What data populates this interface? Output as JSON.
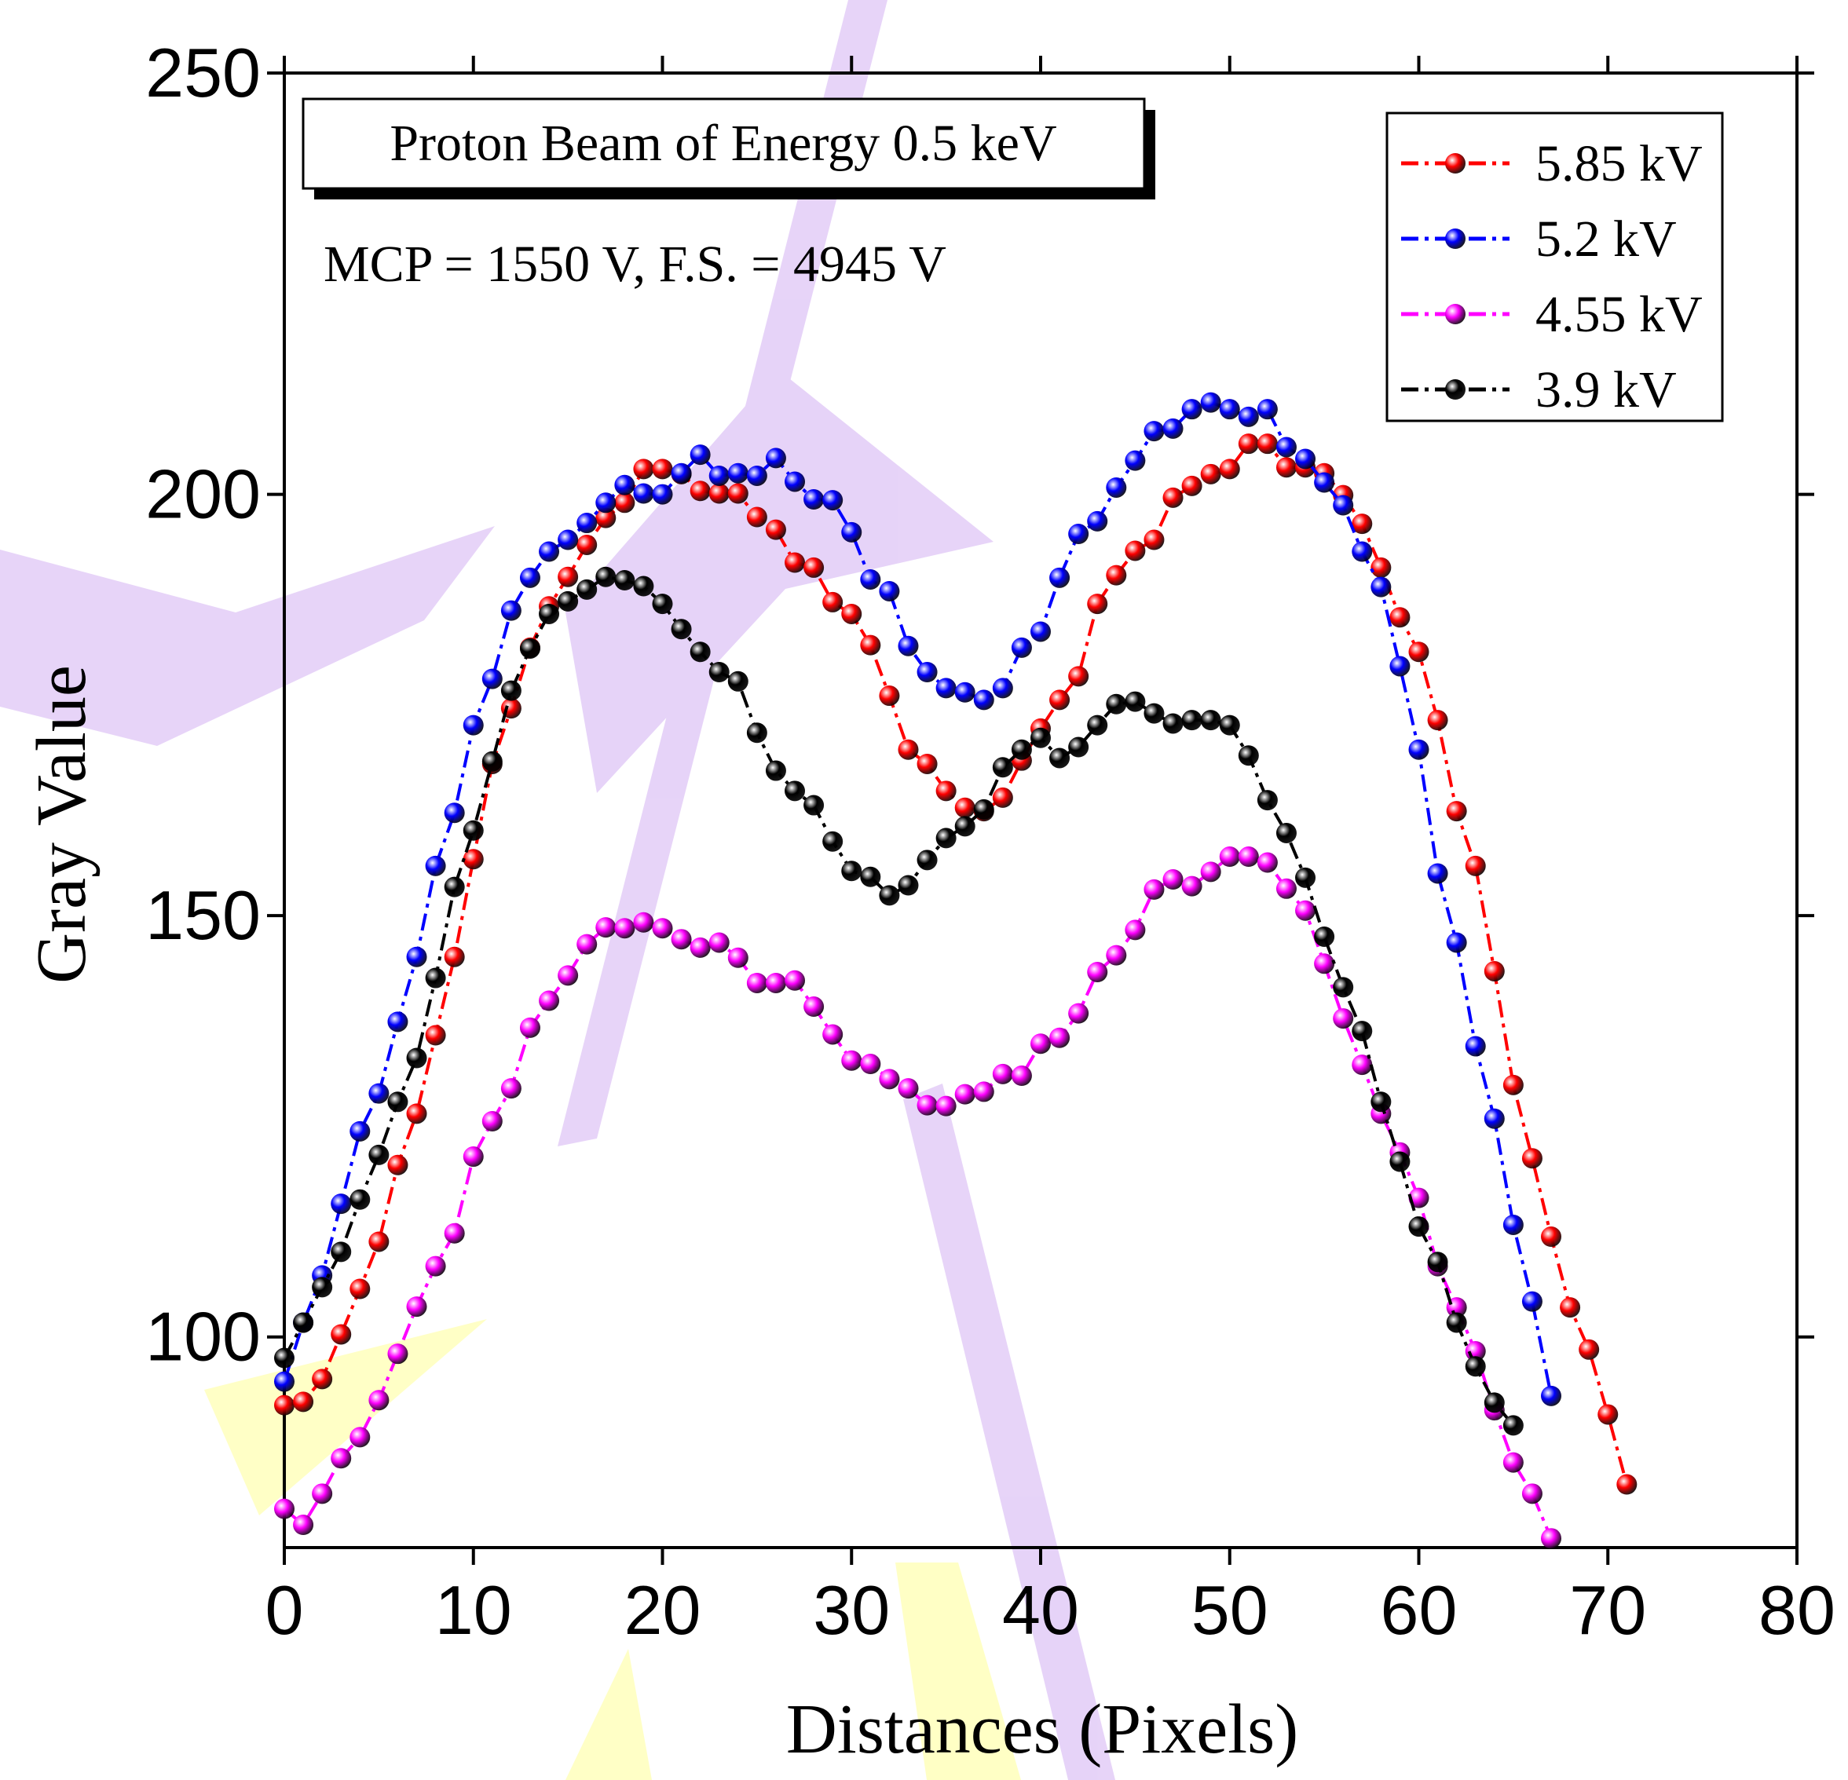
{
  "chart_data": {
    "type": "line",
    "xlabel": "Distances (Pixels)",
    "ylabel": "Gray Value",
    "annotations": [
      "Proton Beam of Energy 0.5 keV",
      "MCP = 1550 V, F.S. = 4945 V"
    ],
    "xlim": [
      0,
      80
    ],
    "xticks": [
      0,
      10,
      20,
      30,
      40,
      50,
      60,
      70,
      80
    ],
    "ylim": [
      75,
      250
    ],
    "yticks": [
      100,
      150,
      200,
      250
    ],
    "legend": "upper right",
    "series": [
      {
        "name": "5.85 kV",
        "color": "#ff0000",
        "x": [
          0,
          1,
          2,
          3,
          4,
          5,
          6,
          7,
          8,
          9,
          10,
          11,
          12,
          13,
          14,
          15,
          16,
          17,
          18,
          19,
          20,
          21,
          22,
          23,
          24,
          25,
          26,
          27,
          28,
          29,
          30,
          31,
          32,
          33,
          34,
          35,
          36,
          37,
          38,
          39,
          40,
          41,
          42,
          43,
          44,
          45,
          46,
          47,
          48,
          49,
          50,
          51,
          52,
          53,
          54,
          55,
          56,
          57,
          58,
          59,
          60,
          61,
          62,
          63,
          64,
          65,
          66,
          67,
          68,
          69,
          70,
          71
        ],
        "values": [
          91.9,
          92.3,
          95,
          100.3,
          105.7,
          111.3,
          120.4,
          126.5,
          135.8,
          145.1,
          156.7,
          168,
          174.6,
          181.8,
          186.7,
          190.2,
          194,
          197.2,
          199,
          203,
          203,
          202.4,
          200.4,
          200.1,
          200.1,
          197.3,
          195.8,
          191.9,
          191.3,
          187.2,
          185.8,
          182.1,
          176.1,
          169.7,
          168,
          164.8,
          162.8,
          162.4,
          164,
          168.4,
          172.2,
          175.6,
          178.4,
          187,
          190.4,
          193.3,
          194.6,
          199.6,
          201,
          202.4,
          203,
          206,
          206,
          203.2,
          203.2,
          202.5,
          199.9,
          196.5,
          191.3,
          185.4,
          181.3,
          173.2,
          162.4,
          155.9,
          143.4,
          129.9,
          121.2,
          111.9,
          103.5,
          98.5,
          90.8,
          82.5
        ]
      },
      {
        "name": "5.2 kV",
        "color": "#0000ff",
        "x": [
          0,
          1,
          2,
          3,
          4,
          5,
          6,
          7,
          8,
          9,
          10,
          11,
          12,
          13,
          14,
          15,
          16,
          17,
          18,
          19,
          20,
          21,
          22,
          23,
          24,
          25,
          26,
          27,
          28,
          29,
          30,
          31,
          32,
          33,
          34,
          35,
          36,
          37,
          38,
          39,
          40,
          41,
          42,
          43,
          44,
          45,
          46,
          47,
          48,
          49,
          50,
          51,
          52,
          53,
          54,
          55,
          56,
          57,
          58,
          59,
          60,
          61,
          62,
          63,
          64,
          65,
          66,
          67
        ],
        "values": [
          94.7,
          101.7,
          107.3,
          115.8,
          124.4,
          128.9,
          137.4,
          145.1,
          155.9,
          162.2,
          172.6,
          178.1,
          186.2,
          190.1,
          193.2,
          194.6,
          196.6,
          199,
          201.1,
          200.1,
          200,
          202.5,
          204.7,
          202.2,
          202.5,
          202.2,
          204.3,
          201.5,
          199.4,
          199.3,
          195.5,
          189.9,
          188.5,
          182,
          178.9,
          177,
          176.5,
          175.6,
          177,
          181.8,
          183.7,
          190.1,
          195.3,
          196.8,
          200.8,
          204,
          207.5,
          207.8,
          210.1,
          210.9,
          210.1,
          209.2,
          210.1,
          205.6,
          204.2,
          201.4,
          198.7,
          193.2,
          189,
          179.6,
          169.7,
          155,
          146.8,
          134.5,
          125.9,
          113.3,
          104.2,
          93
        ]
      },
      {
        "name": "4.55 kV",
        "color": "#ff00ff",
        "x": [
          0,
          1,
          2,
          3,
          4,
          5,
          6,
          7,
          8,
          9,
          10,
          11,
          12,
          13,
          14,
          15,
          16,
          17,
          18,
          19,
          20,
          21,
          22,
          23,
          24,
          25,
          26,
          27,
          28,
          29,
          30,
          31,
          32,
          33,
          34,
          35,
          36,
          37,
          38,
          39,
          40,
          41,
          42,
          43,
          44,
          45,
          46,
          47,
          48,
          49,
          50,
          51,
          52,
          53,
          54,
          55,
          56,
          57,
          58,
          59,
          60,
          61,
          62,
          63,
          64,
          65,
          66,
          67
        ],
        "values": [
          79.6,
          77.7,
          81.4,
          85.6,
          88.1,
          92.5,
          98,
          103.6,
          108.4,
          112.3,
          121.4,
          125.6,
          129.5,
          136.7,
          139.9,
          142.9,
          146.6,
          148.6,
          148.5,
          149.2,
          148.5,
          147.2,
          146.2,
          146.8,
          145,
          142,
          142,
          142.3,
          139.2,
          135.9,
          132.8,
          132.4,
          130.6,
          129.5,
          127.5,
          127.4,
          128.8,
          129.1,
          131.2,
          131,
          134.8,
          135.5,
          138.4,
          143.3,
          145.3,
          148.3,
          153.1,
          154.3,
          153.5,
          155.2,
          157,
          157,
          156.3,
          153.2,
          150.6,
          144.3,
          137.8,
          132.3,
          126.5,
          121.9,
          116.5,
          108.4,
          103.5,
          98.3,
          91.3,
          85.1,
          81.4,
          76.1
        ]
      },
      {
        "name": "3.9 kV",
        "color": "#000000",
        "x": [
          0,
          1,
          2,
          3,
          4,
          5,
          6,
          7,
          8,
          9,
          10,
          11,
          12,
          13,
          14,
          15,
          16,
          17,
          18,
          19,
          20,
          21,
          22,
          23,
          24,
          25,
          26,
          27,
          28,
          29,
          30,
          31,
          32,
          33,
          34,
          35,
          36,
          37,
          38,
          39,
          40,
          41,
          42,
          43,
          44,
          45,
          46,
          47,
          48,
          49,
          50,
          51,
          52,
          53,
          54,
          55,
          56,
          57,
          58,
          59,
          60,
          61,
          62,
          63,
          64,
          65
        ],
        "values": [
          97.5,
          101.7,
          105.9,
          110.1,
          116.3,
          121.6,
          127.9,
          133.1,
          142.6,
          153.4,
          160.1,
          168.3,
          176.7,
          181.7,
          185.8,
          187.3,
          188.7,
          190.2,
          189.8,
          189.1,
          187,
          184,
          181.3,
          178.9,
          177.8,
          171.7,
          167.2,
          164.8,
          163.1,
          158.8,
          155.3,
          154.6,
          152.4,
          153.6,
          156.6,
          159.2,
          160.6,
          162.6,
          167.6,
          169.7,
          171.1,
          168.7,
          170,
          172.6,
          175.1,
          175.4,
          174,
          172.8,
          173.2,
          173.2,
          172.6,
          169,
          163.7,
          159.8,
          154.5,
          147.5,
          141.5,
          136.3,
          127.9,
          120.8,
          113.1,
          108.9,
          101.7,
          96.5,
          92.2,
          89.5
        ]
      }
    ]
  }
}
